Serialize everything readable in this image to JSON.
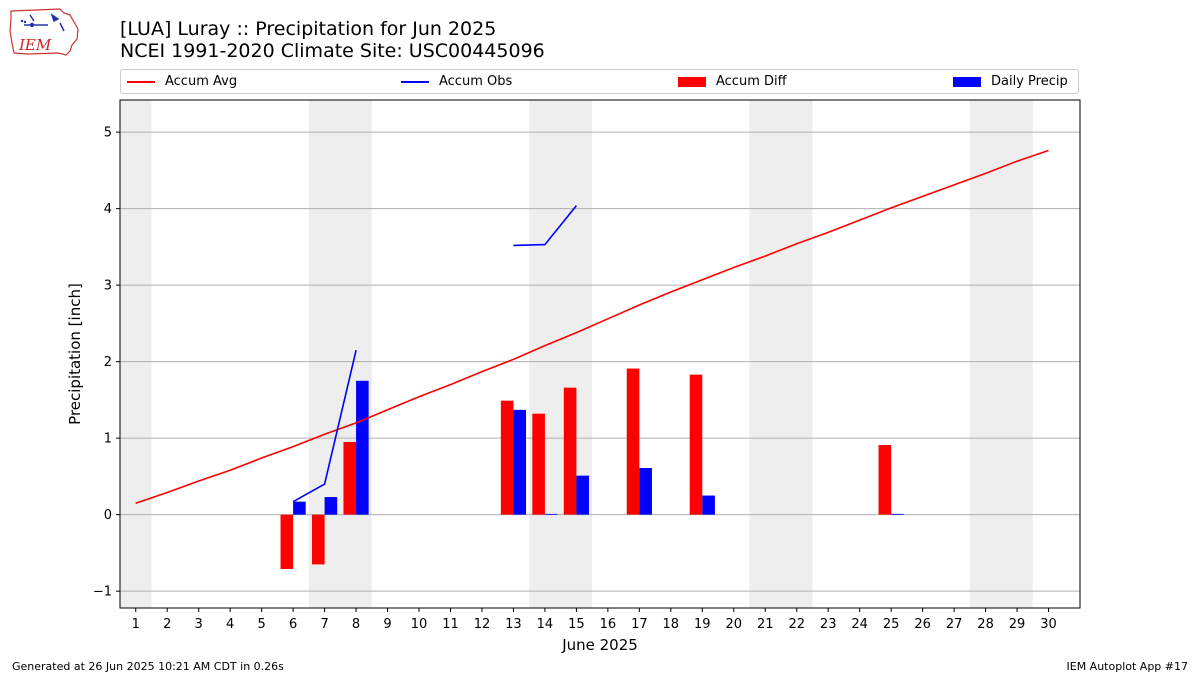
{
  "header": {
    "logo_text": "IEM",
    "title_line1": "[LUA] Luray :: Precipitation for Jun 2025",
    "title_line2": "NCEI 1991-2020 Climate Site: USC00445096"
  },
  "legend": {
    "items": [
      {
        "label": "Accum Avg",
        "kind": "line",
        "color": "#ff0000"
      },
      {
        "label": "Accum Obs",
        "kind": "line",
        "color": "#0000ff"
      },
      {
        "label": "Accum Diff",
        "kind": "patch",
        "color": "#ff0000"
      },
      {
        "label": "Daily Precip",
        "kind": "patch",
        "color": "#0000ff"
      }
    ]
  },
  "footer": {
    "left": "Generated at 26 Jun 2025 10:21 AM CDT in 0.26s",
    "right": "IEM Autoplot App #17"
  },
  "chart_data": {
    "type": "bar",
    "xlabel": "June 2025",
    "ylabel": "Precipitation [inch]",
    "xlim": [
      0.5,
      31.0
    ],
    "ylim": [
      -1.22,
      5.42
    ],
    "x_ticks": [
      1,
      2,
      3,
      4,
      5,
      6,
      7,
      8,
      9,
      10,
      11,
      12,
      13,
      14,
      15,
      16,
      17,
      18,
      19,
      20,
      21,
      22,
      23,
      24,
      25,
      26,
      27,
      28,
      29,
      30
    ],
    "y_ticks": [
      -1,
      0,
      1,
      2,
      3,
      4,
      5
    ],
    "grid": "horizontal",
    "weekend_shading": [
      [
        0.5,
        1.5
      ],
      [
        6.5,
        8.5
      ],
      [
        13.5,
        15.5
      ],
      [
        20.5,
        22.5
      ],
      [
        27.5,
        29.5
      ]
    ],
    "colors": {
      "avg": "#ff0000",
      "obs": "#0000ff",
      "shade": "#eeeeee",
      "grid": "#b0b0b0"
    },
    "series": [
      {
        "name": "Accum Avg",
        "kind": "line",
        "x": [
          1,
          2,
          3,
          4,
          5,
          6,
          7,
          8,
          9,
          10,
          11,
          12,
          13,
          14,
          15,
          16,
          17,
          18,
          19,
          20,
          21,
          22,
          23,
          24,
          25,
          26,
          27,
          28,
          29,
          30
        ],
        "values": [
          0.15,
          0.29,
          0.44,
          0.58,
          0.74,
          0.89,
          1.05,
          1.2,
          1.37,
          1.54,
          1.7,
          1.87,
          2.03,
          2.21,
          2.38,
          2.56,
          2.74,
          2.91,
          3.07,
          3.23,
          3.38,
          3.54,
          3.69,
          3.85,
          4.01,
          4.16,
          4.31,
          4.46,
          4.62,
          4.76
        ]
      },
      {
        "name": "Accum Obs",
        "kind": "line",
        "segments": [
          {
            "x": [
              6,
              7,
              8
            ],
            "values": [
              0.17,
              0.4,
              2.15
            ]
          },
          {
            "x": [
              13,
              14,
              15
            ],
            "values": [
              3.52,
              3.53,
              4.04
            ]
          }
        ]
      },
      {
        "name": "Accum Diff",
        "kind": "bar",
        "x": [
          6,
          7,
          8,
          13,
          14,
          15,
          17,
          19,
          25
        ],
        "values": [
          -0.71,
          -0.65,
          0.95,
          1.49,
          1.32,
          1.66,
          1.91,
          1.83,
          0.91
        ]
      },
      {
        "name": "Daily Precip",
        "kind": "bar",
        "x": [
          6,
          7,
          8,
          13,
          14,
          15,
          17,
          19,
          25
        ],
        "values": [
          0.17,
          0.23,
          1.75,
          1.37,
          0.01,
          0.51,
          0.61,
          0.25,
          0.01
        ]
      }
    ]
  }
}
